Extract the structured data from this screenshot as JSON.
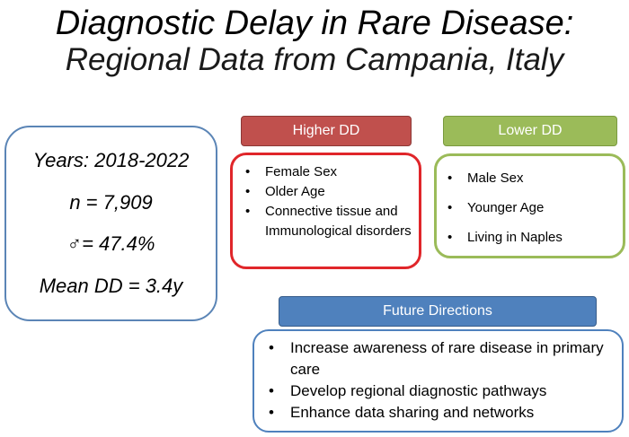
{
  "title": {
    "line1": "Diagnostic Delay in Rare Disease:",
    "line2": "Regional Data from Campania, Italy"
  },
  "stats": {
    "years": "Years: 2018-2022",
    "n": "n = 7,909",
    "male": "♂= 47.4%",
    "mean_dd": "Mean DD = 3.4y"
  },
  "higher_dd": {
    "label": "Higher DD",
    "items": [
      "Female Sex",
      "Older Age",
      "Connective tissue and Immunological disorders"
    ]
  },
  "lower_dd": {
    "label": "Lower DD",
    "items": [
      "Male Sex",
      "Younger Age",
      "Living in Naples"
    ]
  },
  "future": {
    "label": "Future Directions",
    "items": [
      "Increase awareness of rare disease in primary care",
      "Develop regional diagnostic pathways",
      "Enhance data sharing and networks"
    ]
  },
  "bullet": "•",
  "colors": {
    "higher_header": "#c0504d",
    "higher_border": "#e0262a",
    "lower": "#9bbb59",
    "future": "#4f81bd",
    "stats_border": "#5b85b6"
  }
}
